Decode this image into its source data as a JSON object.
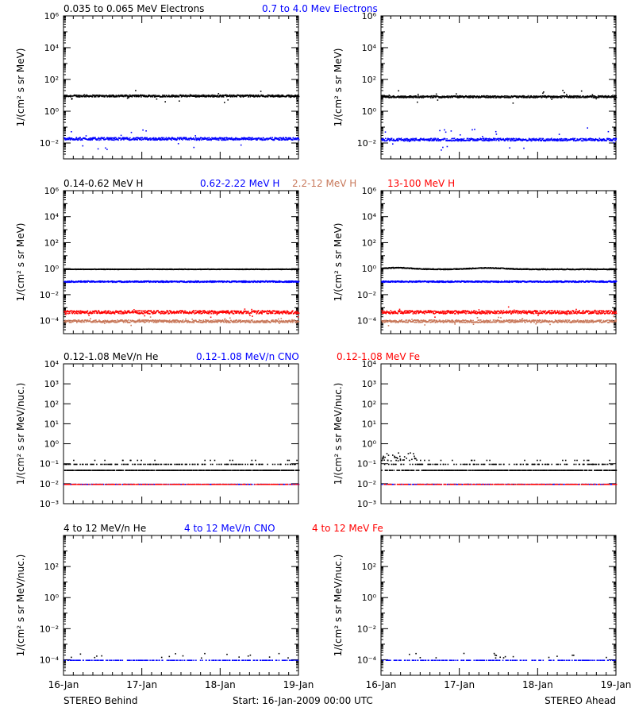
{
  "colors": {
    "black": "#000000",
    "blue": "#0000ff",
    "tan": "#c8785a",
    "red": "#ff0000"
  },
  "footer": {
    "left": "STEREO Behind",
    "center": "Start: 16-Jan-2009 00:00 UTC",
    "right": "STEREO Ahead"
  },
  "x_ticks": [
    "16-Jan",
    "17-Jan",
    "18-Jan",
    "19-Jan"
  ],
  "chart_data": [
    {
      "type": "scatter",
      "row": 0,
      "ylabel": "1/(cm² s sr MeV)",
      "ylim_log10": [
        -3,
        6
      ],
      "y_tick_exponents": [
        -2,
        0,
        2,
        4,
        6
      ],
      "minor_ticks_per_decade": true,
      "xlim_days": [
        0,
        3
      ],
      "legend": [
        {
          "text": "0.035 to 0.065 MeV Electrons",
          "color": "#000000"
        },
        {
          "text": "0.7 to 4.0 Mev Electrons",
          "color": "#0000ff"
        }
      ],
      "panels": [
        {
          "name": "STEREO Behind",
          "series": [
            {
              "color": "#000000",
              "log10_level": 1.0,
              "noise": 0.06,
              "outliers": 0.4
            },
            {
              "color": "#0000ff",
              "log10_level": -1.7,
              "noise": 0.08,
              "outliers": 0.7
            }
          ]
        },
        {
          "name": "STEREO Ahead",
          "series": [
            {
              "color": "#000000",
              "log10_level": 0.95,
              "noise": 0.06,
              "outliers": 0.4
            },
            {
              "color": "#0000ff",
              "log10_level": -1.75,
              "noise": 0.08,
              "outliers": 0.7
            }
          ]
        }
      ]
    },
    {
      "type": "scatter",
      "row": 1,
      "ylabel": "1/(cm² s sr MeV)",
      "ylim_log10": [
        -5,
        6
      ],
      "y_tick_exponents": [
        -4,
        -2,
        0,
        2,
        4,
        6
      ],
      "minor_ticks_per_decade": true,
      "xlim_days": [
        0,
        3
      ],
      "legend": [
        {
          "text": "0.14-0.62 MeV H",
          "color": "#000000"
        },
        {
          "text": "0.62-2.22 MeV H",
          "color": "#0000ff"
        },
        {
          "text": "2.2-12 MeV H",
          "color": "#c8785a"
        },
        {
          "text": "13-100 MeV H",
          "color": "#ff0000"
        }
      ],
      "panels": [
        {
          "name": "STEREO Behind",
          "series": [
            {
              "color": "#000000",
              "log10_level": 0.0,
              "noise": 0.02,
              "outliers": 0
            },
            {
              "color": "#0000ff",
              "log10_level": -0.95,
              "noise": 0.05,
              "outliers": 0
            },
            {
              "color": "#c8785a",
              "log10_level": -4.0,
              "noise": 0.1,
              "outliers": 0.3
            },
            {
              "color": "#ff0000",
              "log10_level": -3.3,
              "noise": 0.12,
              "outliers": 0.3
            }
          ]
        },
        {
          "name": "STEREO Ahead",
          "series": [
            {
              "color": "#000000",
              "log10_level": 0.0,
              "noise": 0.03,
              "outliers": 0,
              "bumps": [
                [
                  0.2,
                  0.25,
                  0.12
                ],
                [
                  1.35,
                  0.3,
                  0.1
                ]
              ]
            },
            {
              "color": "#0000ff",
              "log10_level": -0.95,
              "noise": 0.05,
              "outliers": 0
            },
            {
              "color": "#c8785a",
              "log10_level": -4.0,
              "noise": 0.1,
              "outliers": 0.3
            },
            {
              "color": "#ff0000",
              "log10_level": -3.3,
              "noise": 0.12,
              "outliers": 0.3
            }
          ]
        }
      ]
    },
    {
      "type": "scatter",
      "row": 2,
      "ylabel": "1/(cm² s sr MeV/nuc.)",
      "ylim_log10": [
        -3,
        4
      ],
      "y_tick_exponents": [
        -3,
        -2,
        -1,
        0,
        1,
        2,
        3,
        4
      ],
      "minor_ticks_per_decade": false,
      "xlim_days": [
        0,
        3
      ],
      "legend": [
        {
          "text": "0.12-1.08 MeV/n He",
          "color": "#000000"
        },
        {
          "text": "0.12-1.08 MeV/n CNO",
          "color": "#0000ff"
        },
        {
          "text": "0.12-1.08 MeV Fe",
          "color": "#ff0000"
        }
      ],
      "panels": [
        {
          "name": "STEREO Behind",
          "series": [
            {
              "color": "#000000",
              "log10_level": -1.3,
              "quantized": [
                -1.3,
                -1.0
              ],
              "noise": 0,
              "outliers": 0
            },
            {
              "color": "#0000ff",
              "log10_level": -2.0,
              "noise": 0,
              "outliers": 0,
              "sparse": true
            },
            {
              "color": "#ff0000",
              "log10_level": -2.0,
              "noise": 0,
              "outliers": 0,
              "sparse": true
            }
          ]
        },
        {
          "name": "STEREO Ahead",
          "series": [
            {
              "color": "#000000",
              "log10_level": -1.3,
              "quantized": [
                -1.3,
                -1.0
              ],
              "noise": 0,
              "outliers": 0,
              "burst": [
                0,
                0.45,
                -0.7
              ]
            },
            {
              "color": "#0000ff",
              "log10_level": -2.0,
              "noise": 0,
              "outliers": 0,
              "sparse": true
            },
            {
              "color": "#ff0000",
              "log10_level": -2.0,
              "noise": 0,
              "outliers": 0,
              "sparse": true
            }
          ]
        }
      ]
    },
    {
      "type": "scatter",
      "row": 3,
      "ylabel": "1/(cm² s sr MeV/nuc.)",
      "ylim_log10": [
        -5,
        4
      ],
      "y_tick_exponents": [
        -4,
        -2,
        0,
        2
      ],
      "minor_ticks_per_decade": true,
      "xlim_days": [
        0,
        3
      ],
      "legend": [
        {
          "text": "4 to 12 MeV/n He",
          "color": "#000000"
        },
        {
          "text": "4 to 12 MeV/n CNO",
          "color": "#0000ff"
        },
        {
          "text": "4 to 12 MeV Fe",
          "color": "#ff0000"
        }
      ],
      "panels": [
        {
          "name": "STEREO Behind",
          "series": [
            {
              "color": "#0000ff",
              "log10_level": -4.0,
              "noise": 0,
              "outliers": 0,
              "sparse": true
            },
            {
              "color": "#000000",
              "log10_level": -3.7,
              "noise": 0,
              "outliers": 0,
              "rare": true
            }
          ]
        },
        {
          "name": "STEREO Ahead",
          "series": [
            {
              "color": "#0000ff",
              "log10_level": -4.0,
              "noise": 0,
              "outliers": 0,
              "sparse": true
            },
            {
              "color": "#000000",
              "log10_level": -3.7,
              "noise": 0,
              "outliers": 0,
              "rare": true
            }
          ]
        }
      ]
    }
  ]
}
